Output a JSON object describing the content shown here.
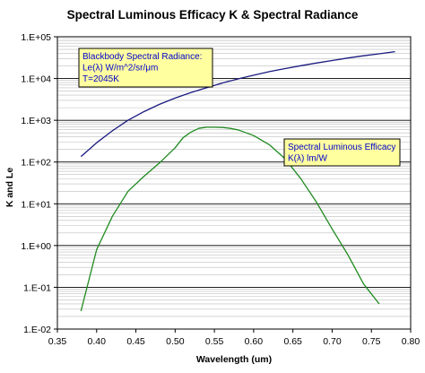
{
  "chart_data": {
    "type": "line",
    "title": "Spectral Luminous Efficacy K & Spectral Radiance",
    "xlabel": "Wavelength (um)",
    "ylabel": "K  and  Le",
    "xlim": [
      0.35,
      0.8
    ],
    "ylim": [
      0.01,
      100000
    ],
    "yscale": "log",
    "grid": true,
    "x_ticks": [
      "0.35",
      "0.40",
      "0.45",
      "0.50",
      "0.55",
      "0.60",
      "0.65",
      "0.70",
      "0.75",
      "0.80"
    ],
    "y_ticks": [
      "1.E-02",
      "1.E-01",
      "1.E+00",
      "1.E+01",
      "1.E+02",
      "1.E+03",
      "1.E+04",
      "1.E+05"
    ],
    "series": [
      {
        "color": "#1a1a80",
        "x": [
          0.38,
          0.4,
          0.42,
          0.44,
          0.46,
          0.48,
          0.5,
          0.52,
          0.54,
          0.56,
          0.58,
          0.6,
          0.62,
          0.64,
          0.66,
          0.68,
          0.7,
          0.72,
          0.74,
          0.76,
          0.78
        ],
        "values": [
          135,
          290,
          560,
          1000,
          1600,
          2400,
          3400,
          4600,
          6000,
          7800,
          9800,
          12000,
          14600,
          17300,
          20300,
          23500,
          27000,
          31000,
          35000,
          39000,
          44000
        ]
      },
      {
        "color": "#1e8a1e",
        "x": [
          0.38,
          0.4,
          0.42,
          0.44,
          0.46,
          0.48,
          0.5,
          0.51,
          0.52,
          0.53,
          0.54,
          0.55,
          0.56,
          0.57,
          0.58,
          0.6,
          0.62,
          0.64,
          0.66,
          0.68,
          0.7,
          0.72,
          0.74,
          0.76
        ],
        "values": [
          0.027,
          0.8,
          5,
          20,
          45,
          95,
          220,
          380,
          520,
          640,
          680,
          683,
          675,
          640,
          590,
          430,
          260,
          120,
          40,
          11,
          2.5,
          0.6,
          0.12,
          0.04
        ]
      }
    ],
    "annotations": [
      {
        "lines": [
          "Blackbody Spectral Radiance:",
          "Le(λ)  W/m^2/sr/μm",
          "T=2045K"
        ]
      },
      {
        "lines": [
          "Spectral Luminous Efficacy",
          "K(λ)  lm/W"
        ]
      }
    ]
  }
}
